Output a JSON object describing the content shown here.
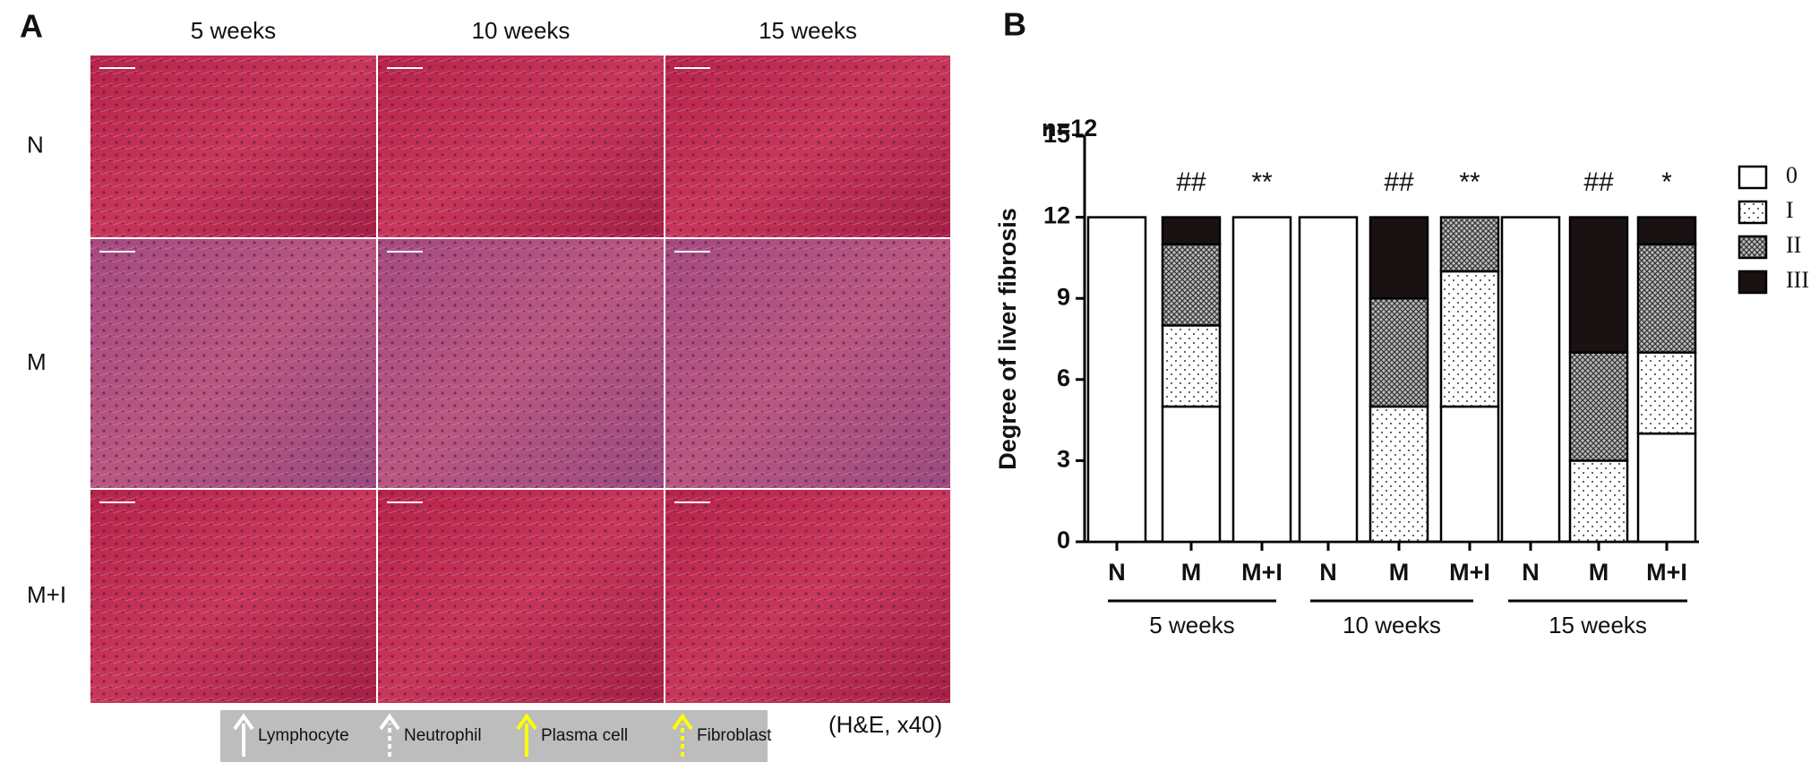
{
  "panel_a": {
    "label": "A",
    "columns": [
      "5 weeks",
      "10 weeks",
      "15 weeks"
    ],
    "rows": [
      "N",
      "M",
      "M+I"
    ],
    "legend": [
      "Lymphocyte",
      "Neutrophil",
      "Plasma cell",
      "Fibroblast"
    ],
    "note": "(H&E, x40)"
  },
  "panel_b_label": "B",
  "chart_data": {
    "type": "stacked_bar",
    "y_label": "Degree of liver fibrosis",
    "note": "n=12",
    "categories": [
      "N",
      "M",
      "M+I",
      "N",
      "M",
      "M+I",
      "N",
      "M",
      "M+I"
    ],
    "groups": [
      "5 weeks",
      "10 weeks",
      "15 weeks"
    ],
    "annotations": [
      null,
      "##",
      "**",
      null,
      "##",
      "**",
      null,
      "##",
      "*"
    ],
    "series": [
      {
        "name": "0",
        "color": "#ffffff",
        "pattern": "solid",
        "values": [
          12,
          5,
          12,
          12,
          0,
          5,
          12,
          0,
          4
        ]
      },
      {
        "name": "I",
        "color": "#ffffff",
        "pattern": "dots",
        "values": [
          0,
          3,
          0,
          0,
          5,
          5,
          0,
          3,
          3
        ]
      },
      {
        "name": "II",
        "color": "#888888",
        "pattern": "crosshatch",
        "values": [
          0,
          3,
          0,
          0,
          4,
          2,
          0,
          4,
          4
        ]
      },
      {
        "name": "III",
        "color": "#1a1212",
        "pattern": "solid",
        "values": [
          0,
          1,
          0,
          0,
          3,
          0,
          0,
          5,
          1
        ]
      }
    ],
    "ylim": [
      0,
      15
    ],
    "yticks": [
      0,
      3,
      6,
      9,
      12,
      15
    ],
    "legend": "right"
  }
}
